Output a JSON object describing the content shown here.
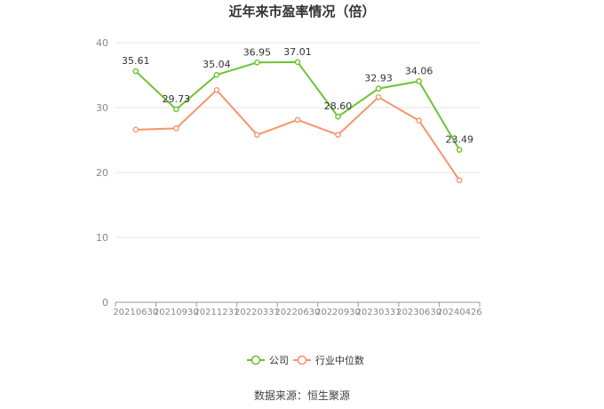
{
  "chart_data": {
    "type": "line",
    "title": "近年来市盈率情况（倍）",
    "categories": [
      "20210630",
      "20210930",
      "20211231",
      "20220331",
      "20220630",
      "20220930",
      "20230331",
      "20230630",
      "20240426"
    ],
    "series": [
      {
        "name": "公司",
        "color": "#6cc431",
        "values": [
          35.61,
          29.73,
          35.04,
          36.95,
          37.01,
          28.6,
          32.93,
          34.06,
          23.49
        ],
        "labels": [
          "35.61",
          "29.73",
          "35.04",
          "36.95",
          "37.01",
          "28.60",
          "32.93",
          "34.06",
          "23.49"
        ]
      },
      {
        "name": "行业中位数",
        "color": "#f5956a",
        "values": [
          26.6,
          26.8,
          32.7,
          25.8,
          28.1,
          25.8,
          31.6,
          28.0,
          18.8
        ]
      }
    ],
    "ylim": [
      0,
      40
    ],
    "yticks": [
      "0",
      "10",
      "20",
      "30",
      "40"
    ],
    "grid": true,
    "legend_position": "bottom-center",
    "xlabel": "",
    "ylabel": ""
  },
  "source": "数据来源：恒生聚源"
}
